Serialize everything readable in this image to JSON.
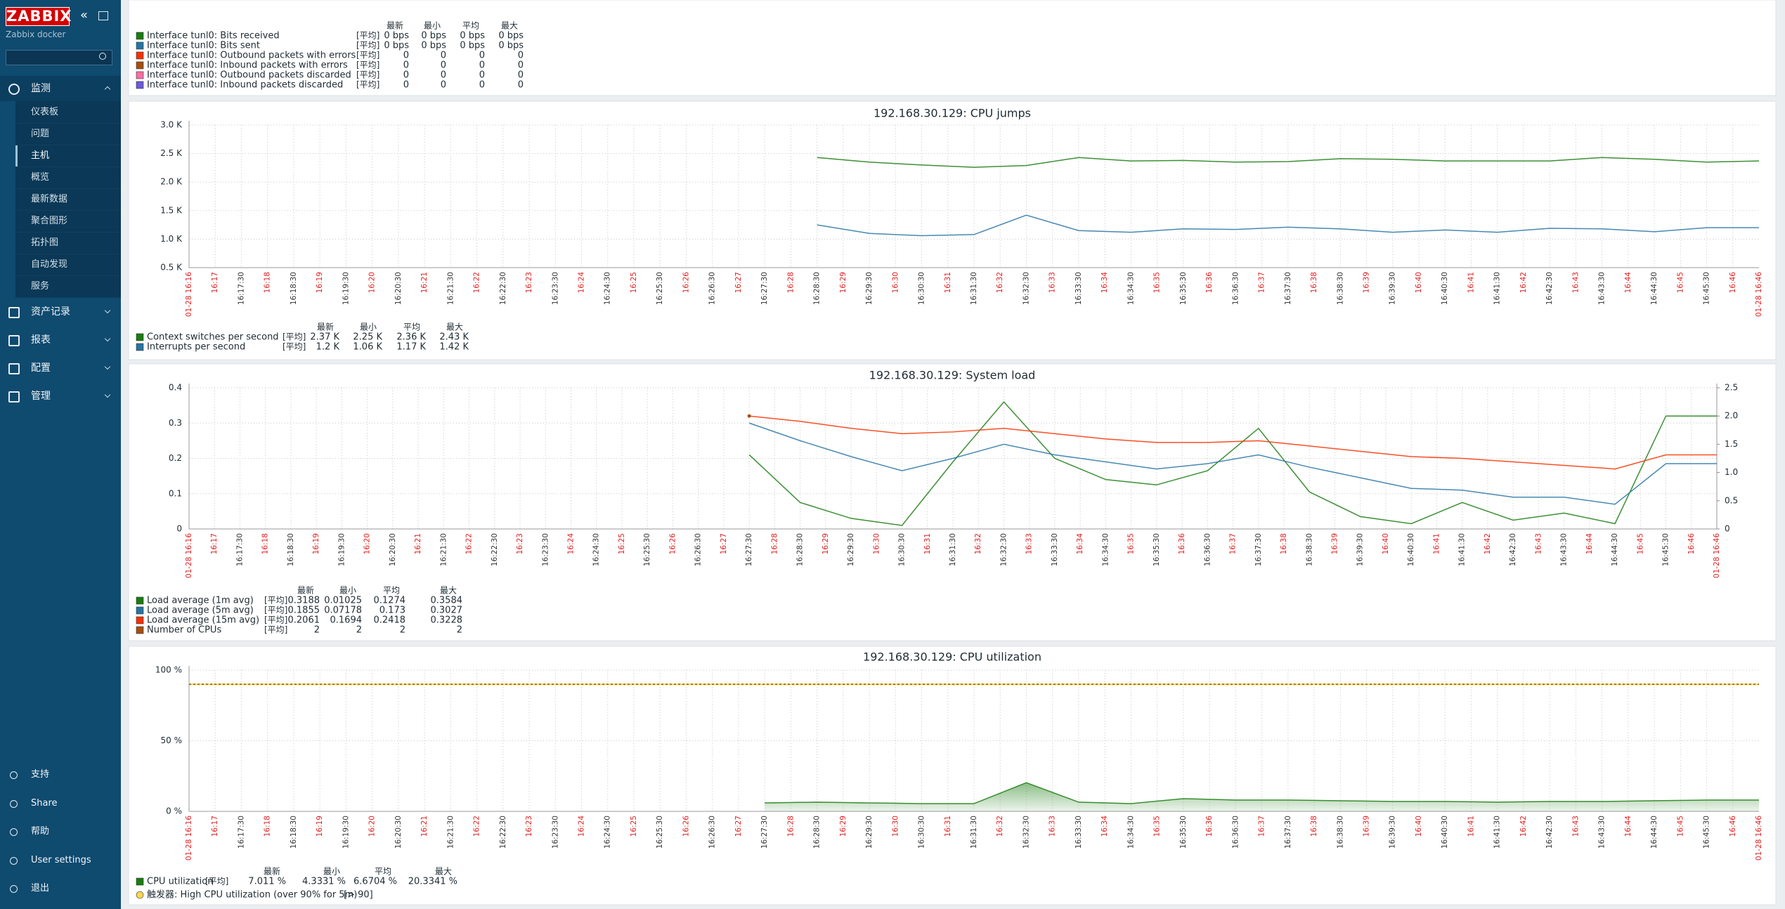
{
  "sidebar": {
    "logo": "ZABBIX",
    "server": "Zabbix docker",
    "active_index": 2,
    "menu": [
      {
        "label": "监测",
        "items": [
          "仪表板",
          "问题",
          "主机",
          "概览",
          "最新数据",
          "聚合图形",
          "拓扑图",
          "自动发现",
          "服务"
        ]
      },
      {
        "label": "资产记录"
      },
      {
        "label": "报表"
      },
      {
        "label": "配置"
      },
      {
        "label": "管理"
      }
    ],
    "footer": [
      "支持",
      "Share",
      "帮助",
      "User settings",
      "退出"
    ]
  },
  "legend_headers": [
    "最新",
    "最小",
    "平均",
    "最大"
  ],
  "time_axis": {
    "major_color": "#e02020",
    "minor_color": "#333333",
    "xlim": [
      0.5,
      30.5
    ],
    "xticks": [
      {
        "value": 0.5,
        "label": "01-28 16:16"
      },
      {
        "value": 1,
        "label": "16:17"
      },
      {
        "value": 1.5,
        "label": "16:17:30"
      },
      {
        "value": 2,
        "label": "16:18"
      },
      {
        "value": 2.5,
        "label": "16:18:30"
      },
      {
        "value": 3,
        "label": "16:19"
      },
      {
        "value": 3.5,
        "label": "16:19:30"
      },
      {
        "value": 4,
        "label": "16:20"
      },
      {
        "value": 4.5,
        "label": "16:20:30"
      },
      {
        "value": 5,
        "label": "16:21"
      },
      {
        "value": 5.5,
        "label": "16:21:30"
      },
      {
        "value": 6,
        "label": "16:22"
      },
      {
        "value": 6.5,
        "label": "16:22:30"
      },
      {
        "value": 7,
        "label": "16:23"
      },
      {
        "value": 7.5,
        "label": "16:23:30"
      },
      {
        "value": 8,
        "label": "16:24"
      },
      {
        "value": 8.5,
        "label": "16:24:30"
      },
      {
        "value": 9,
        "label": "16:25"
      },
      {
        "value": 9.5,
        "label": "16:25:30"
      },
      {
        "value": 10,
        "label": "16:26"
      },
      {
        "value": 10.5,
        "label": "16:26:30"
      },
      {
        "value": 11,
        "label": "16:27"
      },
      {
        "value": 11.5,
        "label": "16:27:30"
      },
      {
        "value": 12,
        "label": "16:28"
      },
      {
        "value": 12.5,
        "label": "16:28:30"
      },
      {
        "value": 13,
        "label": "16:29"
      },
      {
        "value": 13.5,
        "label": "16:29:30"
      },
      {
        "value": 14,
        "label": "16:30"
      },
      {
        "value": 14.5,
        "label": "16:30:30"
      },
      {
        "value": 15,
        "label": "16:31"
      },
      {
        "value": 15.5,
        "label": "16:31:30"
      },
      {
        "value": 16,
        "label": "16:32"
      },
      {
        "value": 16.5,
        "label": "16:32:30"
      },
      {
        "value": 17,
        "label": "16:33"
      },
      {
        "value": 17.5,
        "label": "16:33:30"
      },
      {
        "value": 18,
        "label": "16:34"
      },
      {
        "value": 18.5,
        "label": "16:34:30"
      },
      {
        "value": 19,
        "label": "16:35"
      },
      {
        "value": 19.5,
        "label": "16:35:30"
      },
      {
        "value": 20,
        "label": "16:36"
      },
      {
        "value": 20.5,
        "label": "16:36:30"
      },
      {
        "value": 21,
        "label": "16:37"
      },
      {
        "value": 21.5,
        "label": "16:37:30"
      },
      {
        "value": 22,
        "label": "16:38"
      },
      {
        "value": 22.5,
        "label": "16:38:30"
      },
      {
        "value": 23,
        "label": "16:39"
      },
      {
        "value": 23.5,
        "label": "16:39:30"
      },
      {
        "value": 24,
        "label": "16:40"
      },
      {
        "value": 24.5,
        "label": "16:40:30"
      },
      {
        "value": 25,
        "label": "16:41"
      },
      {
        "value": 25.5,
        "label": "16:41:30"
      },
      {
        "value": 26,
        "label": "16:42"
      },
      {
        "value": 26.5,
        "label": "16:42:30"
      },
      {
        "value": 27,
        "label": "16:43"
      },
      {
        "value": 27.5,
        "label": "16:43:30"
      },
      {
        "value": 28,
        "label": "16:44"
      },
      {
        "value": 28.5,
        "label": "16:44:30"
      },
      {
        "value": 29,
        "label": "16:45"
      },
      {
        "value": 29.5,
        "label": "16:45:30"
      },
      {
        "value": 30,
        "label": "16:46"
      },
      {
        "value": 30.5,
        "label": "01-28 16:46"
      }
    ]
  },
  "top_panel": {
    "rows": [
      {
        "name": "Interface tunl0: Bits received",
        "func": "[平均]",
        "color": "#1A7C11",
        "stats": [
          "0 bps",
          "0 bps",
          "0 bps",
          "0 bps"
        ]
      },
      {
        "name": "Interface tunl0: Bits sent",
        "func": "[平均]",
        "color": "#2774A4",
        "stats": [
          "0 bps",
          "0 bps",
          "0 bps",
          "0 bps"
        ]
      },
      {
        "name": "Interface tunl0: Outbound packets with errors",
        "func": "[平均]",
        "color": "#F63100",
        "stats": [
          "0",
          "0",
          "0",
          "0"
        ]
      },
      {
        "name": "Interface tunl0: Inbound packets with errors",
        "func": "[平均]",
        "color": "#A54F10",
        "stats": [
          "0",
          "0",
          "0",
          "0"
        ]
      },
      {
        "name": "Interface tunl0: Outbound packets discarded",
        "func": "[平均]",
        "color": "#FC6EA3",
        "stats": [
          "0",
          "0",
          "0",
          "0"
        ]
      },
      {
        "name": "Interface tunl0: Inbound packets discarded",
        "func": "[平均]",
        "color": "#6C59DC",
        "stats": [
          "0",
          "0",
          "0",
          "0"
        ]
      }
    ]
  },
  "graphs": [
    {
      "type": "line",
      "title": "192.168.30.129: CPU jumps",
      "grid": true,
      "ylim": [
        500,
        3000
      ],
      "yticks": [
        {
          "value": 500,
          "label": "0.5 K"
        },
        {
          "value": 1000,
          "label": "1.0 K"
        },
        {
          "value": 1500,
          "label": "1.5 K"
        },
        {
          "value": 2000,
          "label": "2.0 K"
        },
        {
          "value": 2500,
          "label": "2.5 K"
        },
        {
          "value": 3000,
          "label": "3.0 K"
        }
      ],
      "series": [
        {
          "name": "Context switches per second",
          "func": "[平均]",
          "color": "#1A7C11",
          "stats": [
            "2.37 K",
            "2.25 K",
            "2.36 K",
            "2.43 K"
          ],
          "x": [
            12.5,
            13.5,
            14.5,
            15.5,
            16.5,
            17.5,
            18.5,
            19.5,
            20.5,
            21.5,
            22.5,
            23.5,
            24.5,
            25.5,
            26.5,
            27.5,
            28.5,
            29.5,
            30.5
          ],
          "values": [
            2430,
            2350,
            2300,
            2260,
            2290,
            2430,
            2370,
            2380,
            2350,
            2360,
            2410,
            2400,
            2370,
            2370,
            2370,
            2430,
            2400,
            2350,
            2370
          ]
        },
        {
          "name": "Interrupts per second",
          "func": "[平均]",
          "color": "#2774A4",
          "stats": [
            "1.2 K",
            "1.06 K",
            "1.17 K",
            "1.42 K"
          ],
          "x": [
            12.5,
            13.5,
            14.5,
            15.5,
            16.5,
            17.5,
            18.5,
            19.5,
            20.5,
            21.5,
            22.5,
            23.5,
            24.5,
            25.5,
            26.5,
            27.5,
            28.5,
            29.5,
            30.5
          ],
          "values": [
            1250,
            1100,
            1060,
            1080,
            1420,
            1150,
            1120,
            1180,
            1170,
            1210,
            1180,
            1120,
            1160,
            1120,
            1190,
            1180,
            1130,
            1200,
            1200
          ]
        }
      ]
    },
    {
      "type": "line",
      "title": "192.168.30.129: System load",
      "grid": true,
      "ylim": [
        0,
        0.4
      ],
      "yticks": [
        0,
        0.1,
        0.2,
        0.3,
        0.4
      ],
      "y2lim": [
        0,
        2.5
      ],
      "y2ticks": [
        0,
        0.5,
        {
          "value": 1,
          "label": "1.0"
        },
        1.5,
        {
          "value": 2,
          "label": "2.0"
        },
        2.5
      ],
      "series": [
        {
          "name": "Load average (1m avg)",
          "func": "[平均]",
          "color": "#1A7C11",
          "stats": [
            "0.3188",
            "0.01025",
            "0.1274",
            "0.3584"
          ],
          "x": [
            11.5,
            12.5,
            13.5,
            14.5,
            15.5,
            16.5,
            17.5,
            18.5,
            19.5,
            20.5,
            21.5,
            22.5,
            23.5,
            24.5,
            25.5,
            26.5,
            27.5,
            28.5,
            29.5,
            30.5
          ],
          "values": [
            0.21,
            0.075,
            0.03,
            0.01,
            0.19,
            0.36,
            0.2,
            0.14,
            0.125,
            0.165,
            0.285,
            0.105,
            0.035,
            0.015,
            0.075,
            0.025,
            0.045,
            0.015,
            0.32,
            0.32
          ]
        },
        {
          "name": "Load average (5m avg)",
          "func": "[平均]",
          "color": "#2774A4",
          "stats": [
            "0.1855",
            "0.07178",
            "0.173",
            "0.3027"
          ],
          "x": [
            11.5,
            12.5,
            13.5,
            14.5,
            15.5,
            16.5,
            17.5,
            18.5,
            19.5,
            20.5,
            21.5,
            22.5,
            23.5,
            24.5,
            25.5,
            26.5,
            27.5,
            28.5,
            29.5,
            30.5
          ],
          "values": [
            0.3,
            0.25,
            0.205,
            0.165,
            0.2,
            0.24,
            0.21,
            0.19,
            0.17,
            0.185,
            0.21,
            0.175,
            0.145,
            0.115,
            0.11,
            0.09,
            0.09,
            0.07,
            0.185,
            0.185
          ]
        },
        {
          "name": "Load average (15m avg)",
          "func": "[平均]",
          "color": "#F63100",
          "stats": [
            "0.2061",
            "0.1694",
            "0.2418",
            "0.3228"
          ],
          "x": [
            11.5,
            12.5,
            13.5,
            14.5,
            15.5,
            16.5,
            17.5,
            18.5,
            19.5,
            20.5,
            21.5,
            22.5,
            23.5,
            24.5,
            25.5,
            26.5,
            27.5,
            28.5,
            29.5,
            30.5
          ],
          "values": [
            0.32,
            0.305,
            0.285,
            0.27,
            0.275,
            0.285,
            0.27,
            0.255,
            0.245,
            0.245,
            0.25,
            0.235,
            0.22,
            0.205,
            0.2,
            0.19,
            0.18,
            0.17,
            0.21,
            0.21
          ]
        },
        {
          "name": "Number of CPUs",
          "func": "[平均]",
          "color": "#A54F10",
          "axis": "y2",
          "stats": [
            "2",
            "2",
            "2",
            "2"
          ],
          "x": [
            11.5
          ],
          "values": [
            2
          ]
        }
      ]
    },
    {
      "type": "area",
      "title": "192.168.30.129: CPU utilization",
      "grid": true,
      "ylim": [
        0,
        100
      ],
      "yticks": [
        {
          "value": 0,
          "label": "0 %"
        },
        {
          "value": 50,
          "label": "50 %"
        },
        {
          "value": 100,
          "label": "100 %"
        }
      ],
      "trigger": {
        "label": "触发器: High CPU utilization (over 90% for 5m)",
        "condition": "[> 90]",
        "value": 90,
        "color": "#ffd54f",
        "line_color": "#a07a10"
      },
      "series": [
        {
          "name": "CPU utilization",
          "func": "[平均]",
          "color": "#1A7C11",
          "stats": [
            "7.011 %",
            "4.3331 %",
            "6.6704 %",
            "20.3341 %"
          ],
          "x": [
            11.5,
            12.5,
            13.5,
            14.5,
            15.5,
            16.5,
            17.5,
            18.5,
            19.5,
            20.5,
            21.5,
            22.5,
            23.5,
            24.5,
            25.5,
            26.5,
            27.5,
            28.5,
            29.5,
            30.5
          ],
          "values": [
            6,
            6.5,
            6,
            5.5,
            5.5,
            20.3,
            6.5,
            5.5,
            9,
            8,
            8,
            7.5,
            7,
            7,
            6.5,
            7,
            7,
            7.5,
            8,
            8
          ]
        }
      ]
    }
  ]
}
